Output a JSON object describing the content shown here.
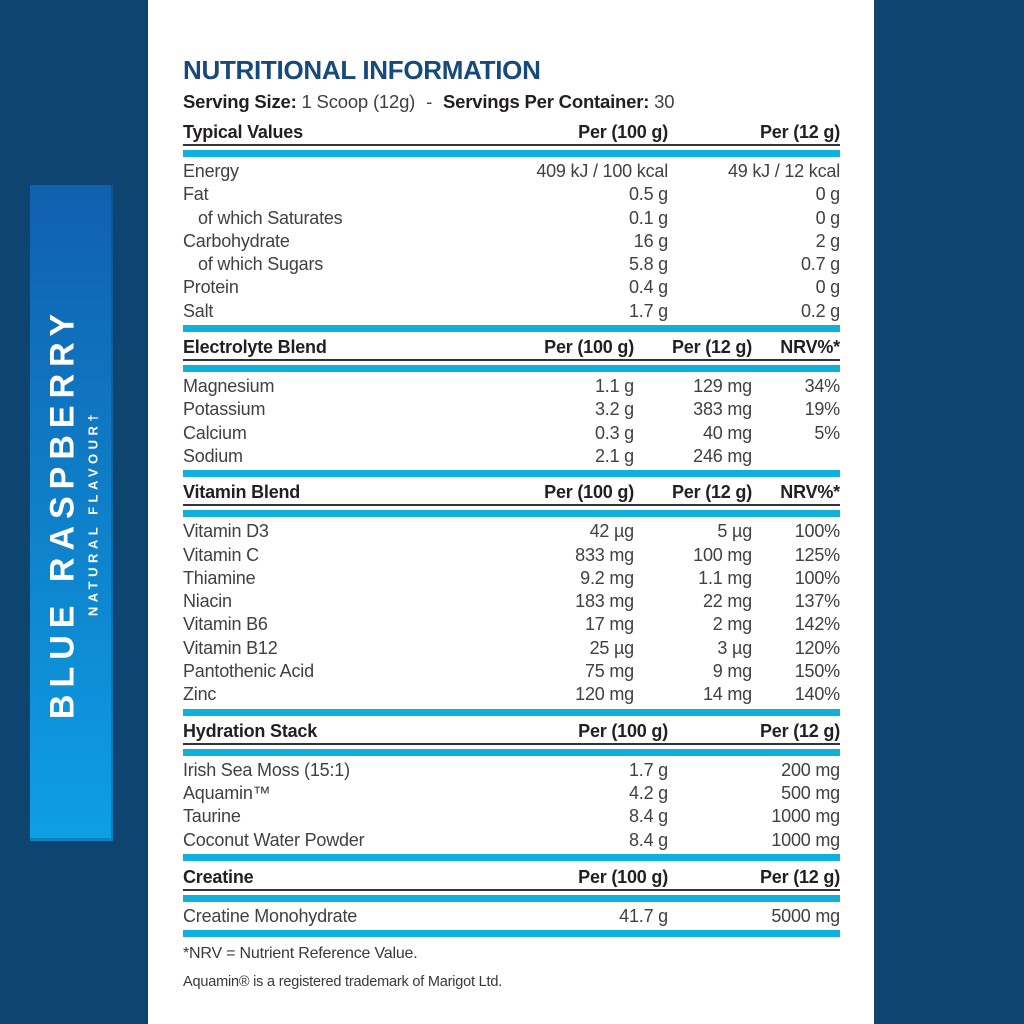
{
  "colors": {
    "navy": "#0d4470",
    "stripTop": "#1160ae",
    "stripBottom": "#0d9fe4",
    "cyan": "#0fb1dc",
    "titleNavy": "#164a7c",
    "heading": "#231f20",
    "text": "#414042"
  },
  "sidebar": {
    "flavour": "BLUE RASPBERRY",
    "subtitle": "NATURAL FLAVOUR†"
  },
  "page": {
    "title": "NUTRITIONAL INFORMATION",
    "serving": {
      "size_label": "Serving Size:",
      "size_value": "1 Scoop (12g)",
      "separator": "-",
      "container_label": "Servings Per Container:",
      "container_value": "30"
    }
  },
  "sections": [
    {
      "header": "Typical Values",
      "columns": [
        "Per (100 g)",
        "Per (12 g)"
      ],
      "rows": [
        {
          "label": "Energy",
          "values": [
            "409 kJ / 100 kcal",
            "49 kJ / 12 kcal"
          ]
        },
        {
          "label": "Fat",
          "values": [
            "0.5 g",
            "0 g"
          ]
        },
        {
          "label": "of which Saturates",
          "indent": true,
          "values": [
            "0.1 g",
            "0 g"
          ]
        },
        {
          "label": "Carbohydrate",
          "values": [
            "16 g",
            "2 g"
          ]
        },
        {
          "label": "of which Sugars",
          "indent": true,
          "values": [
            "5.8 g",
            "0.7 g"
          ]
        },
        {
          "label": "Protein",
          "values": [
            "0.4 g",
            "0 g"
          ]
        },
        {
          "label": "Salt",
          "values": [
            "1.7 g",
            "0.2 g"
          ]
        }
      ]
    },
    {
      "header": "Electrolyte Blend",
      "columns": [
        "Per (100 g)",
        "Per (12 g)",
        "NRV%*"
      ],
      "rows": [
        {
          "label": "Magnesium",
          "values": [
            "1.1 g",
            "129 mg",
            "34%"
          ]
        },
        {
          "label": "Potassium",
          "values": [
            "3.2 g",
            "383 mg",
            "19%"
          ]
        },
        {
          "label": "Calcium",
          "values": [
            "0.3 g",
            "40 mg",
            "5%"
          ]
        },
        {
          "label": "Sodium",
          "values": [
            "2.1 g",
            "246 mg",
            ""
          ]
        }
      ]
    },
    {
      "header": "Vitamin Blend",
      "columns": [
        "Per (100 g)",
        "Per (12 g)",
        "NRV%*"
      ],
      "rows": [
        {
          "label": "Vitamin D3",
          "values": [
            "42 µg",
            "5 µg",
            "100%"
          ]
        },
        {
          "label": "Vitamin C",
          "values": [
            "833 mg",
            "100 mg",
            "125%"
          ]
        },
        {
          "label": "Thiamine",
          "values": [
            "9.2 mg",
            "1.1 mg",
            "100%"
          ]
        },
        {
          "label": "Niacin",
          "values": [
            "183 mg",
            "22 mg",
            "137%"
          ]
        },
        {
          "label": "Vitamin B6",
          "values": [
            "17 mg",
            "2 mg",
            "142%"
          ]
        },
        {
          "label": "Vitamin B12",
          "values": [
            "25 µg",
            "3 µg",
            "120%"
          ]
        },
        {
          "label": "Pantothenic Acid",
          "values": [
            "75 mg",
            "9 mg",
            "150%"
          ]
        },
        {
          "label": "Zinc",
          "values": [
            "120 mg",
            "14 mg",
            "140%"
          ]
        }
      ]
    },
    {
      "header": "Hydration Stack",
      "columns": [
        "Per (100 g)",
        "Per (12 g)"
      ],
      "rows": [
        {
          "label": "Irish Sea Moss (15:1)",
          "values": [
            "1.7 g",
            "200 mg"
          ]
        },
        {
          "label": "Aquamin™",
          "values": [
            "4.2 g",
            "500 mg"
          ]
        },
        {
          "label": "Taurine",
          "values": [
            "8.4 g",
            "1000 mg"
          ]
        },
        {
          "label": "Coconut Water Powder",
          "values": [
            "8.4 g",
            "1000 mg"
          ]
        }
      ]
    },
    {
      "header": "Creatine",
      "columns": [
        "Per (100 g)",
        "Per (12 g)"
      ],
      "rows": [
        {
          "label": "Creatine Monohydrate",
          "values": [
            "41.7 g",
            "5000 mg"
          ]
        }
      ]
    }
  ],
  "footnotes": [
    "*NRV = Nutrient Reference Value.",
    "Aquamin® is a registered trademark of Marigot Ltd."
  ]
}
